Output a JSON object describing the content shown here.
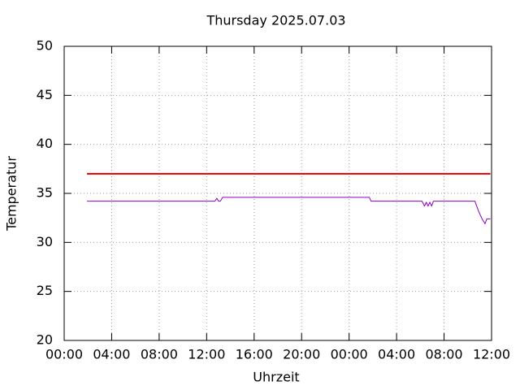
{
  "chart_data": {
    "type": "line",
    "title": "Thursday 2025.07.03",
    "x_label": "Uhrzeit",
    "y_label": "Temperatur",
    "xlim": [
      0,
      36
    ],
    "ylim": [
      20,
      50
    ],
    "xticks": [
      {
        "value": 0,
        "label": "00:00"
      },
      {
        "value": 4,
        "label": "04:00"
      },
      {
        "value": 8,
        "label": "08:00"
      },
      {
        "value": 12,
        "label": "12:00"
      },
      {
        "value": 16,
        "label": "16:00"
      },
      {
        "value": 20,
        "label": "20:00"
      },
      {
        "value": 24,
        "label": "00:00"
      },
      {
        "value": 28,
        "label": "04:00"
      },
      {
        "value": 32,
        "label": "08:00"
      },
      {
        "value": 36,
        "label": "12:00"
      }
    ],
    "yticks": [
      20,
      25,
      30,
      35,
      40,
      45,
      50
    ],
    "grid": true,
    "series": [
      {
        "color": "#e00000",
        "x": [
          1.92,
          35.9
        ],
        "values": [
          37,
          37
        ]
      },
      {
        "color": "#8a00c8",
        "x": [
          1.92,
          12.7,
          12.85,
          13.0,
          13.15,
          13.35,
          25.7,
          25.85,
          30.15,
          30.35,
          30.5,
          30.65,
          30.8,
          30.95,
          31.1,
          31.25,
          34.6,
          34.9,
          35.2,
          35.45,
          35.6,
          35.9
        ],
        "values": [
          34.2,
          34.2,
          34.5,
          34.2,
          34.2,
          34.6,
          34.6,
          34.2,
          34.2,
          33.7,
          34.1,
          33.7,
          34.1,
          33.7,
          34.2,
          34.2,
          34.2,
          33.2,
          32.4,
          31.9,
          32.4,
          32.4
        ]
      }
    ]
  }
}
